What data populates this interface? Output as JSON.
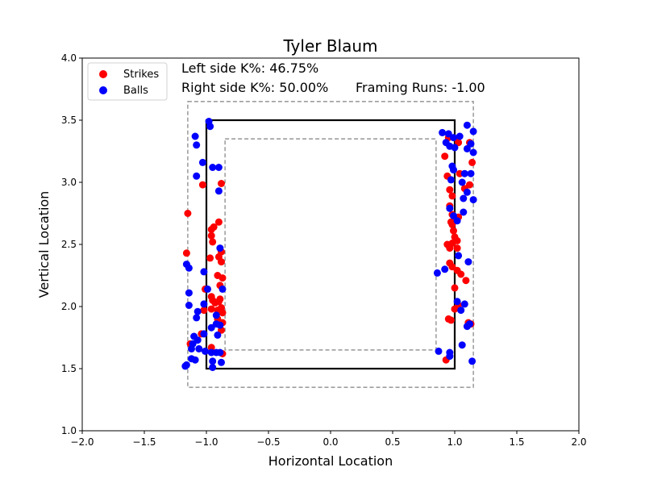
{
  "chart_data": {
    "type": "scatter",
    "title": "Tyler Blaum",
    "xlabel": "Horizontal Location",
    "ylabel": "Vertical Location",
    "xlim": [
      -2.0,
      2.0
    ],
    "ylim": [
      1.0,
      4.0
    ],
    "xticks": [
      -2.0,
      -1.5,
      -1.0,
      -0.5,
      0.0,
      0.5,
      1.0,
      1.5,
      2.0
    ],
    "yticks": [
      1.0,
      1.5,
      2.0,
      2.5,
      3.0,
      3.5,
      4.0
    ],
    "xtick_labels": [
      "−2.0",
      "−1.5",
      "−1.0",
      "−0.5",
      "0.0",
      "0.5",
      "1.0",
      "1.5",
      "2.0"
    ],
    "ytick_labels": [
      "1.0",
      "1.5",
      "2.0",
      "2.5",
      "3.0",
      "3.5",
      "4.0"
    ],
    "grid": false,
    "legend_position": "top-left",
    "annotations": {
      "left_k": "Left side K%: 46.75%",
      "right_k": "Right side K%: 50.00%",
      "framing": "Framing Runs: -1.00"
    },
    "zones": {
      "strike_zone": {
        "x": [
          -1.0,
          1.0
        ],
        "y": [
          1.5,
          3.5
        ],
        "color": "#000000",
        "style": "solid"
      },
      "outer_zone": {
        "x": [
          -1.15,
          1.15
        ],
        "y": [
          1.35,
          3.65
        ],
        "color": "#808080",
        "style": "dashed"
      },
      "inner_zone": {
        "x": [
          -0.85,
          0.85
        ],
        "y": [
          1.65,
          3.35
        ],
        "color": "#808080",
        "style": "dashed"
      }
    },
    "series": [
      {
        "name": "Strikes",
        "color": "#ff0000",
        "points": [
          [
            -1.15,
            2.75
          ],
          [
            -1.16,
            2.43
          ],
          [
            -1.13,
            1.7
          ],
          [
            -1.03,
            2.98
          ],
          [
            -1.02,
            1.97
          ],
          [
            -1.01,
            2.14
          ],
          [
            -0.96,
            2.62
          ],
          [
            -0.95,
            2.52
          ],
          [
            -0.97,
            2.39
          ],
          [
            -0.94,
            2.64
          ],
          [
            -0.96,
            2.57
          ],
          [
            -0.9,
            2.68
          ],
          [
            -0.88,
            2.99
          ],
          [
            -0.88,
            2.44
          ],
          [
            -0.9,
            2.4
          ],
          [
            -0.88,
            2.36
          ],
          [
            -0.91,
            2.25
          ],
          [
            -0.87,
            2.23
          ],
          [
            -0.89,
            2.17
          ],
          [
            -0.96,
            2.08
          ],
          [
            -0.95,
            2.05
          ],
          [
            -0.93,
            2.03
          ],
          [
            -0.9,
            2.04
          ],
          [
            -0.89,
            2.06
          ],
          [
            -0.88,
            1.99
          ],
          [
            -0.87,
            1.95
          ],
          [
            -0.91,
            1.97
          ],
          [
            -0.96,
            1.98
          ],
          [
            -0.91,
            1.9
          ],
          [
            -0.88,
            1.81
          ],
          [
            -0.87,
            1.87
          ],
          [
            -0.96,
            1.67
          ],
          [
            -0.87,
            1.62
          ],
          [
            -1.04,
            1.78
          ],
          [
            0.92,
            3.21
          ],
          [
            0.94,
            3.05
          ],
          [
            0.96,
            2.94
          ],
          [
            0.98,
            2.89
          ],
          [
            0.96,
            2.81
          ],
          [
            0.98,
            2.74
          ],
          [
            0.97,
            2.68
          ],
          [
            0.98,
            2.66
          ],
          [
            0.99,
            2.61
          ],
          [
            1.0,
            2.56
          ],
          [
            1.02,
            2.53
          ],
          [
            0.98,
            2.51
          ],
          [
            0.94,
            2.5
          ],
          [
            1.02,
            2.47
          ],
          [
            0.96,
            2.47
          ],
          [
            0.96,
            2.35
          ],
          [
            0.98,
            2.32
          ],
          [
            1.02,
            2.29
          ],
          [
            1.05,
            2.26
          ],
          [
            1.09,
            2.21
          ],
          [
            1.0,
            2.15
          ],
          [
            1.03,
            2.01
          ],
          [
            1.0,
            1.98
          ],
          [
            0.95,
            1.9
          ],
          [
            0.97,
            1.89
          ],
          [
            1.11,
            1.87
          ],
          [
            1.13,
            1.86
          ],
          [
            0.93,
            1.57
          ],
          [
            1.02,
            3.35
          ],
          [
            1.03,
            3.32
          ],
          [
            1.12,
            3.32
          ],
          [
            1.14,
            3.16
          ],
          [
            1.12,
            2.98
          ],
          [
            1.08,
            2.95
          ],
          [
            1.04,
            3.07
          ],
          [
            1.03,
            2.72
          ],
          [
            0.95,
            3.36
          ]
        ]
      },
      {
        "name": "Balls",
        "color": "#0000ff",
        "points": [
          [
            -0.98,
            3.49
          ],
          [
            -0.97,
            3.45
          ],
          [
            -1.09,
            3.37
          ],
          [
            -1.08,
            3.3
          ],
          [
            -1.03,
            3.16
          ],
          [
            -0.95,
            3.12
          ],
          [
            -0.9,
            3.12
          ],
          [
            -1.08,
            3.05
          ],
          [
            -0.9,
            2.93
          ],
          [
            -1.16,
            2.34
          ],
          [
            -1.14,
            2.31
          ],
          [
            -1.02,
            2.28
          ],
          [
            -0.89,
            2.47
          ],
          [
            -0.87,
            2.14
          ],
          [
            -0.99,
            2.14
          ],
          [
            -1.14,
            2.11
          ],
          [
            -1.14,
            2.01
          ],
          [
            -1.02,
            2.02
          ],
          [
            -1.07,
            1.96
          ],
          [
            -1.08,
            1.91
          ],
          [
            -0.92,
            1.93
          ],
          [
            -0.89,
            1.85
          ],
          [
            -0.92,
            1.86
          ],
          [
            -0.91,
            1.77
          ],
          [
            -0.96,
            1.83
          ],
          [
            -1.1,
            1.76
          ],
          [
            -1.07,
            1.73
          ],
          [
            -1.11,
            1.7
          ],
          [
            -1.12,
            1.66
          ],
          [
            -1.02,
            1.78
          ],
          [
            -1.06,
            1.66
          ],
          [
            -1.01,
            1.64
          ],
          [
            -0.96,
            1.63
          ],
          [
            -0.92,
            1.63
          ],
          [
            -0.89,
            1.63
          ],
          [
            -1.09,
            1.57
          ],
          [
            -1.16,
            1.53
          ],
          [
            -1.17,
            1.52
          ],
          [
            -0.95,
            1.56
          ],
          [
            -0.95,
            1.51
          ],
          [
            -0.88,
            1.55
          ],
          [
            -1.12,
            1.58
          ],
          [
            0.9,
            3.4
          ],
          [
            0.95,
            3.39
          ],
          [
            0.99,
            3.36
          ],
          [
            0.96,
            3.29
          ],
          [
            0.93,
            3.32
          ],
          [
            1.0,
            3.28
          ],
          [
            1.04,
            3.37
          ],
          [
            1.1,
            3.46
          ],
          [
            1.15,
            3.41
          ],
          [
            1.13,
            3.31
          ],
          [
            1.1,
            3.27
          ],
          [
            1.15,
            3.24
          ],
          [
            0.98,
            3.13
          ],
          [
            0.99,
            3.1
          ],
          [
            1.08,
            3.07
          ],
          [
            1.13,
            3.07
          ],
          [
            0.97,
            3.02
          ],
          [
            1.06,
            3.0
          ],
          [
            1.1,
            2.92
          ],
          [
            1.07,
            2.87
          ],
          [
            1.15,
            2.86
          ],
          [
            0.96,
            2.79
          ],
          [
            0.99,
            2.73
          ],
          [
            1.07,
            2.76
          ],
          [
            1.02,
            2.69
          ],
          [
            1.03,
            2.41
          ],
          [
            1.11,
            2.36
          ],
          [
            0.92,
            2.3
          ],
          [
            0.86,
            2.27
          ],
          [
            1.02,
            2.04
          ],
          [
            1.08,
            2.02
          ],
          [
            1.05,
            1.97
          ],
          [
            1.1,
            1.84
          ],
          [
            1.12,
            1.86
          ],
          [
            1.06,
            1.69
          ],
          [
            0.87,
            1.64
          ],
          [
            0.96,
            1.63
          ],
          [
            0.96,
            1.6
          ],
          [
            1.14,
            1.56
          ]
        ]
      }
    ]
  }
}
